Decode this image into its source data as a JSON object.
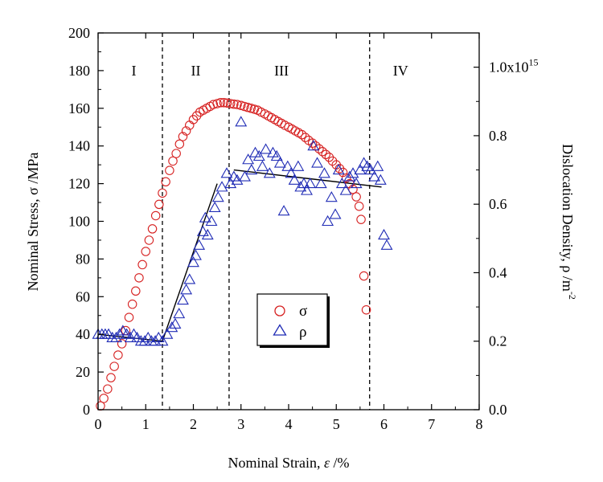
{
  "chart_data": {
    "type": "scatter",
    "x_axis": {
      "label_prefix": "Nominal Strain, ",
      "label_symbol": "ε",
      "label_suffix": " /%",
      "range": [
        0,
        8
      ],
      "ticks": [
        "0",
        "1",
        "2",
        "3",
        "4",
        "5",
        "6",
        "7",
        "8"
      ]
    },
    "y_left": {
      "label": "Nominal Stress, σ /MPa",
      "range": [
        0,
        200
      ],
      "ticks": [
        "0",
        "20",
        "40",
        "60",
        "80",
        "100",
        "120",
        "140",
        "160",
        "180",
        "200"
      ]
    },
    "y_right": {
      "label_main": "Dislocation Density, ρ /m",
      "label_exponent": "-2",
      "range": [
        0,
        1.1
      ],
      "ticks": [
        {
          "value": 0.0,
          "label": "0.0"
        },
        {
          "value": 0.2,
          "label": "0.2"
        },
        {
          "value": 0.4,
          "label": "0.4"
        },
        {
          "value": 0.6,
          "label": "0.6"
        },
        {
          "value": 0.8,
          "label": "0.8"
        },
        {
          "value": 1.0,
          "label": "1.0x10",
          "exponent": "15"
        }
      ]
    },
    "region_boundaries": [
      1.35,
      2.75,
      5.7
    ],
    "regions": [
      {
        "label": "I",
        "x": 0.75
      },
      {
        "label": "II",
        "x": 2.05
      },
      {
        "label": "III",
        "x": 3.85
      },
      {
        "label": "IV",
        "x": 6.35
      }
    ],
    "legend": {
      "position": "center",
      "entries": [
        {
          "symbol": "circle",
          "label": "σ"
        },
        {
          "symbol": "triangle",
          "label": "ρ"
        }
      ]
    },
    "series": [
      {
        "name": "σ",
        "axis": "left",
        "marker": "circle",
        "color": "#d62020",
        "points": [
          [
            0.05,
            2
          ],
          [
            0.12,
            6
          ],
          [
            0.2,
            11
          ],
          [
            0.27,
            17
          ],
          [
            0.34,
            23
          ],
          [
            0.42,
            29
          ],
          [
            0.5,
            35
          ],
          [
            0.58,
            42
          ],
          [
            0.65,
            49
          ],
          [
            0.72,
            56
          ],
          [
            0.79,
            63
          ],
          [
            0.86,
            70
          ],
          [
            0.93,
            77
          ],
          [
            1.0,
            84
          ],
          [
            1.07,
            90
          ],
          [
            1.14,
            96
          ],
          [
            1.21,
            103
          ],
          [
            1.28,
            109
          ],
          [
            1.35,
            115
          ],
          [
            1.42,
            121
          ],
          [
            1.5,
            127
          ],
          [
            1.57,
            132
          ],
          [
            1.64,
            136
          ],
          [
            1.71,
            141
          ],
          [
            1.78,
            145
          ],
          [
            1.85,
            148
          ],
          [
            1.92,
            151
          ],
          [
            2.0,
            154
          ],
          [
            2.07,
            156
          ],
          [
            2.14,
            158
          ],
          [
            2.21,
            159
          ],
          [
            2.28,
            160
          ],
          [
            2.35,
            161
          ],
          [
            2.42,
            162
          ],
          [
            2.5,
            162.5
          ],
          [
            2.57,
            163
          ],
          [
            2.64,
            163
          ],
          [
            2.71,
            162.8
          ],
          [
            2.78,
            162.5
          ],
          [
            2.85,
            162.2
          ],
          [
            2.92,
            162
          ],
          [
            3.0,
            161.5
          ],
          [
            3.07,
            161
          ],
          [
            3.14,
            160.5
          ],
          [
            3.21,
            160
          ],
          [
            3.28,
            159.5
          ],
          [
            3.35,
            159
          ],
          [
            3.42,
            158
          ],
          [
            3.5,
            157
          ],
          [
            3.57,
            156
          ],
          [
            3.64,
            155
          ],
          [
            3.71,
            154
          ],
          [
            3.78,
            153
          ],
          [
            3.85,
            152
          ],
          [
            3.92,
            151
          ],
          [
            4.0,
            150
          ],
          [
            4.07,
            149
          ],
          [
            4.14,
            148
          ],
          [
            4.21,
            147
          ],
          [
            4.28,
            146
          ],
          [
            4.35,
            144.5
          ],
          [
            4.42,
            143
          ],
          [
            4.5,
            141.5
          ],
          [
            4.57,
            140
          ],
          [
            4.64,
            138.5
          ],
          [
            4.71,
            137
          ],
          [
            4.78,
            135.5
          ],
          [
            4.85,
            134
          ],
          [
            4.92,
            132
          ],
          [
            5.0,
            130
          ],
          [
            5.07,
            128
          ],
          [
            5.14,
            126
          ],
          [
            5.21,
            123
          ],
          [
            5.28,
            120
          ],
          [
            5.35,
            117
          ],
          [
            5.42,
            113
          ],
          [
            5.48,
            108
          ],
          [
            5.52,
            101
          ],
          [
            5.58,
            71
          ],
          [
            5.63,
            53
          ]
        ]
      },
      {
        "name": "ρ",
        "axis": "right",
        "marker": "triangle",
        "color": "#1f2bb5",
        "points": [
          [
            0.0,
            0.22
          ],
          [
            0.08,
            0.22
          ],
          [
            0.15,
            0.22
          ],
          [
            0.22,
            0.22
          ],
          [
            0.3,
            0.21
          ],
          [
            0.38,
            0.21
          ],
          [
            0.45,
            0.22
          ],
          [
            0.52,
            0.23
          ],
          [
            0.6,
            0.22
          ],
          [
            0.68,
            0.21
          ],
          [
            0.75,
            0.22
          ],
          [
            0.82,
            0.21
          ],
          [
            0.9,
            0.2
          ],
          [
            0.98,
            0.2
          ],
          [
            1.05,
            0.21
          ],
          [
            1.12,
            0.2
          ],
          [
            1.2,
            0.2
          ],
          [
            1.27,
            0.21
          ],
          [
            1.35,
            0.2
          ],
          [
            1.45,
            0.22
          ],
          [
            1.55,
            0.24
          ],
          [
            1.62,
            0.25
          ],
          [
            1.7,
            0.28
          ],
          [
            1.78,
            0.32
          ],
          [
            1.85,
            0.35
          ],
          [
            1.92,
            0.38
          ],
          [
            2.0,
            0.43
          ],
          [
            2.05,
            0.45
          ],
          [
            2.12,
            0.48
          ],
          [
            2.2,
            0.52
          ],
          [
            2.25,
            0.56
          ],
          [
            2.3,
            0.51
          ],
          [
            2.38,
            0.55
          ],
          [
            2.45,
            0.59
          ],
          [
            2.52,
            0.62
          ],
          [
            2.6,
            0.65
          ],
          [
            2.7,
            0.69
          ],
          [
            2.78,
            0.66
          ],
          [
            2.85,
            0.68
          ],
          [
            2.92,
            0.67
          ],
          [
            3.0,
            0.84
          ],
          [
            3.08,
            0.68
          ],
          [
            3.15,
            0.73
          ],
          [
            3.22,
            0.7
          ],
          [
            3.3,
            0.75
          ],
          [
            3.38,
            0.74
          ],
          [
            3.45,
            0.71
          ],
          [
            3.52,
            0.76
          ],
          [
            3.6,
            0.69
          ],
          [
            3.67,
            0.75
          ],
          [
            3.75,
            0.74
          ],
          [
            3.82,
            0.72
          ],
          [
            3.9,
            0.58
          ],
          [
            3.98,
            0.71
          ],
          [
            4.05,
            0.69
          ],
          [
            4.12,
            0.67
          ],
          [
            4.2,
            0.71
          ],
          [
            4.25,
            0.65
          ],
          [
            4.32,
            0.66
          ],
          [
            4.38,
            0.64
          ],
          [
            4.45,
            0.66
          ],
          [
            4.52,
            0.77
          ],
          [
            4.6,
            0.72
          ],
          [
            4.68,
            0.66
          ],
          [
            4.75,
            0.69
          ],
          [
            4.82,
            0.55
          ],
          [
            4.9,
            0.62
          ],
          [
            4.98,
            0.57
          ],
          [
            5.05,
            0.7
          ],
          [
            5.12,
            0.66
          ],
          [
            5.2,
            0.64
          ],
          [
            5.28,
            0.68
          ],
          [
            5.35,
            0.69
          ],
          [
            5.42,
            0.66
          ],
          [
            5.5,
            0.7
          ],
          [
            5.58,
            0.72
          ],
          [
            5.65,
            0.71
          ],
          [
            5.72,
            0.7
          ],
          [
            5.8,
            0.68
          ],
          [
            5.87,
            0.71
          ],
          [
            5.93,
            0.67
          ],
          [
            6.0,
            0.51
          ],
          [
            6.06,
            0.48
          ]
        ]
      }
    ],
    "trend_lines": [
      {
        "axis": "right",
        "points": [
          [
            0,
            0.22
          ],
          [
            1.35,
            0.2
          ]
        ]
      },
      {
        "axis": "right",
        "points": [
          [
            1.35,
            0.2
          ],
          [
            2.5,
            0.66
          ]
        ]
      },
      {
        "axis": "right",
        "points": [
          [
            2.85,
            0.7
          ],
          [
            5.95,
            0.65
          ]
        ]
      }
    ]
  }
}
